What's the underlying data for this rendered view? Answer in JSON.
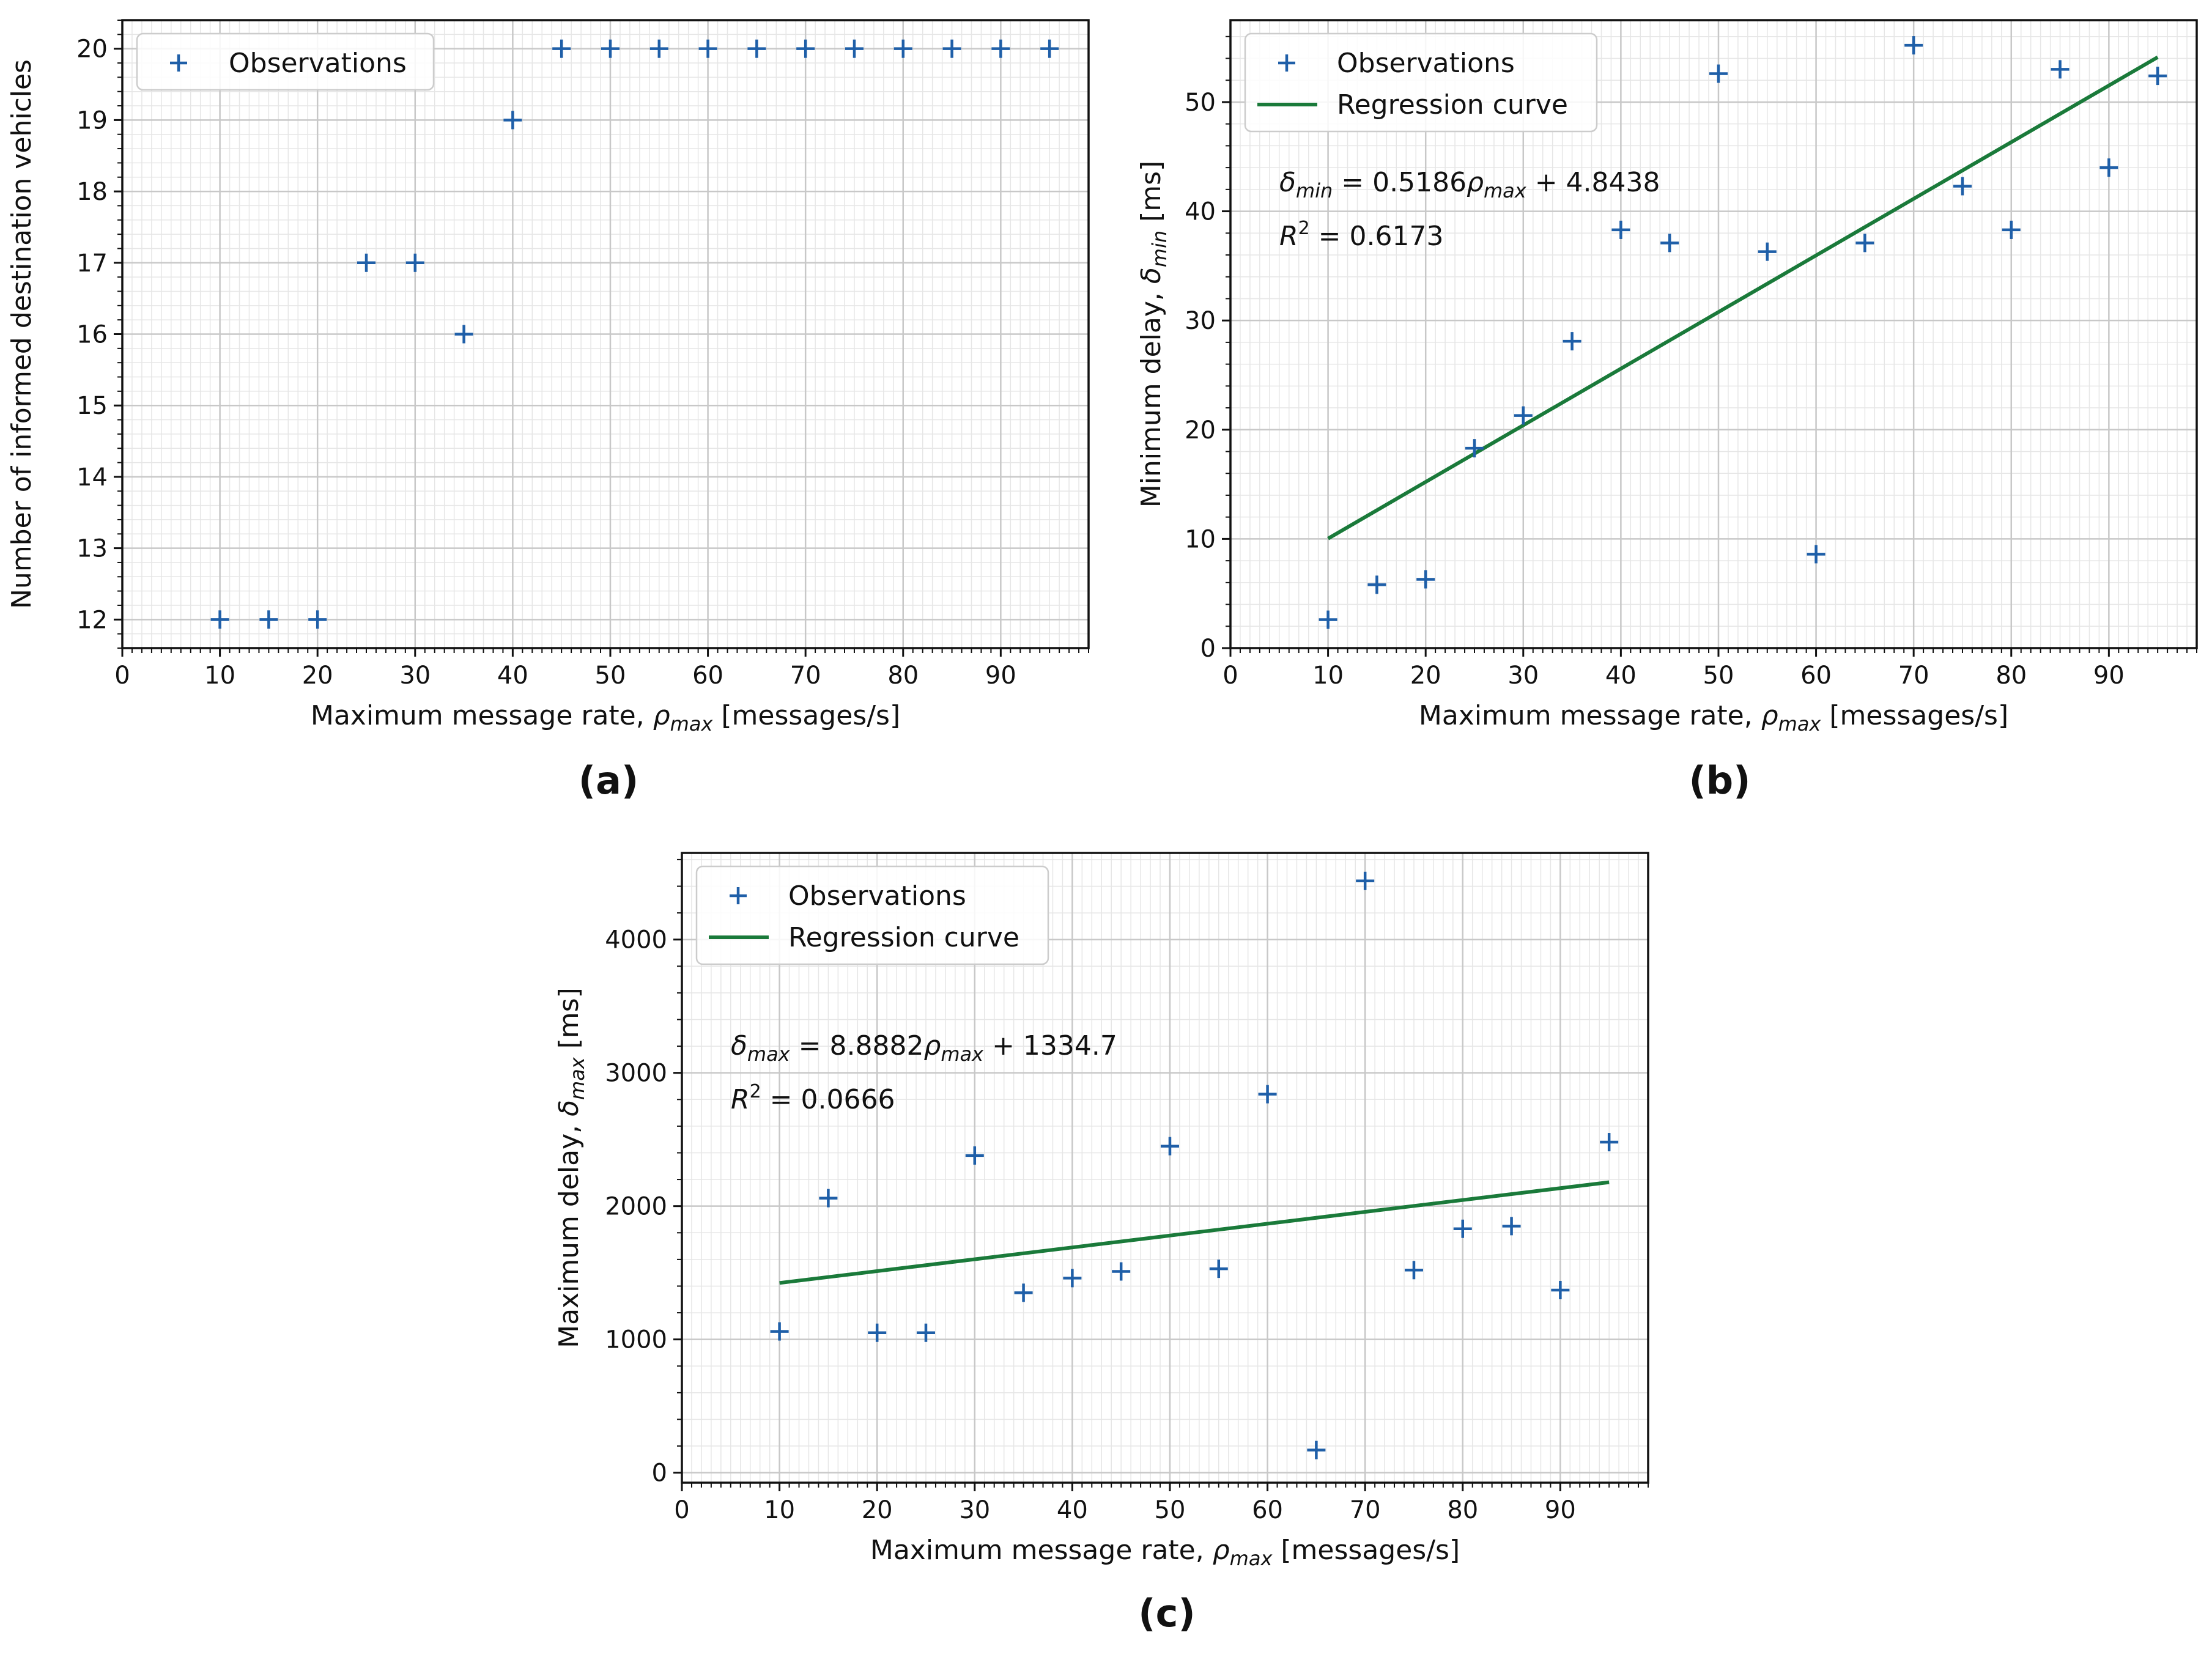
{
  "colors": {
    "observation": "#1f5fa8",
    "regression": "#1a7a3a"
  },
  "chart_data": [
    {
      "id": "a",
      "panel_label": "(a)",
      "type": "scatter",
      "title": "",
      "xlabel_prefix": "Maximum message rate, ",
      "xlabel_symbol": "ρ",
      "xlabel_subscript": "max",
      "xlabel_suffix": " [messages/s]",
      "ylabel_prefix": "Number of informed destination vehicles",
      "ylabel_symbol": "",
      "ylabel_subscript": "",
      "ylabel_suffix": "",
      "xlim": [
        0,
        99
      ],
      "ylim": [
        11.6,
        20.4
      ],
      "xticks": [
        0,
        10,
        20,
        30,
        40,
        50,
        60,
        70,
        80,
        90
      ],
      "xtick_labels": [
        "0",
        "10",
        "20",
        "30",
        "40",
        "50",
        "60",
        "70",
        "80",
        "90"
      ],
      "yticks": [
        12,
        13,
        14,
        15,
        16,
        17,
        18,
        19,
        20
      ],
      "ytick_labels": [
        "12",
        "13",
        "14",
        "15",
        "16",
        "17",
        "18",
        "19",
        "20"
      ],
      "grid": true,
      "legend": [
        "Observations"
      ],
      "legend_position": "top-left",
      "series": [
        {
          "name": "Observations",
          "kind": "points",
          "x": [
            10,
            15,
            20,
            25,
            30,
            35,
            40,
            45,
            50,
            55,
            60,
            65,
            70,
            75,
            80,
            85,
            90,
            95
          ],
          "y": [
            12,
            12,
            12,
            17,
            17,
            16,
            19,
            20,
            20,
            20,
            20,
            20,
            20,
            20,
            20,
            20,
            20,
            20
          ]
        }
      ]
    },
    {
      "id": "b",
      "panel_label": "(b)",
      "type": "scatter",
      "title": "",
      "xlabel_prefix": "Maximum message rate, ",
      "xlabel_symbol": "ρ",
      "xlabel_subscript": "max",
      "xlabel_suffix": " [messages/s]",
      "ylabel_prefix": "Minimum delay, ",
      "ylabel_symbol": "δ",
      "ylabel_subscript": "min",
      "ylabel_suffix": " [ms]",
      "xlim": [
        0,
        99
      ],
      "ylim": [
        0,
        57.5
      ],
      "xticks": [
        0,
        10,
        20,
        30,
        40,
        50,
        60,
        70,
        80,
        90
      ],
      "xtick_labels": [
        "0",
        "10",
        "20",
        "30",
        "40",
        "50",
        "60",
        "70",
        "80",
        "90"
      ],
      "yticks": [
        0,
        10,
        20,
        30,
        40,
        50
      ],
      "ytick_labels": [
        "0",
        "10",
        "20",
        "30",
        "40",
        "50"
      ],
      "grid": true,
      "legend": [
        "Observations",
        "Regression curve"
      ],
      "legend_position": "top-left",
      "equation": {
        "lhs_symbol": "δ",
        "lhs_sub": "min",
        "rhs_a": " = 0.5186",
        "rhs_symbol": "ρ",
        "rhs_sub": "max",
        "rhs_b": " + 4.8438",
        "r2_label": "R",
        "r2_sup": "2",
        "r2_value": " = 0.6173"
      },
      "series": [
        {
          "name": "Observations",
          "kind": "points",
          "x": [
            10,
            15,
            20,
            25,
            30,
            35,
            40,
            45,
            50,
            55,
            60,
            65,
            70,
            75,
            80,
            85,
            90,
            95
          ],
          "y": [
            2.6,
            5.8,
            6.3,
            18.3,
            21.3,
            28.1,
            38.3,
            37.1,
            52.6,
            36.3,
            8.6,
            37.1,
            55.2,
            42.3,
            38.3,
            53.0,
            44.0,
            52.4
          ]
        },
        {
          "name": "Regression curve",
          "kind": "line",
          "x": [
            10,
            95
          ],
          "y": [
            10.03,
            54.11
          ]
        }
      ]
    },
    {
      "id": "c",
      "panel_label": "(c)",
      "type": "scatter",
      "title": "",
      "xlabel_prefix": "Maximum message rate, ",
      "xlabel_symbol": "ρ",
      "xlabel_subscript": "max",
      "xlabel_suffix": " [messages/s]",
      "ylabel_prefix": "Maximum delay, ",
      "ylabel_symbol": "δ",
      "ylabel_subscript": "max",
      "ylabel_suffix": " [ms]",
      "xlim": [
        0,
        99
      ],
      "ylim": [
        -75,
        4650
      ],
      "xticks": [
        0,
        10,
        20,
        30,
        40,
        50,
        60,
        70,
        80,
        90
      ],
      "xtick_labels": [
        "0",
        "10",
        "20",
        "30",
        "40",
        "50",
        "60",
        "70",
        "80",
        "90"
      ],
      "yticks": [
        0,
        1000,
        2000,
        3000,
        4000
      ],
      "ytick_labels": [
        "0",
        "1000",
        "2000",
        "3000",
        "4000"
      ],
      "grid": true,
      "legend": [
        "Observations",
        "Regression curve"
      ],
      "legend_position": "top-left",
      "equation": {
        "lhs_symbol": "δ",
        "lhs_sub": "max",
        "rhs_a": " = 8.8882",
        "rhs_symbol": "ρ",
        "rhs_sub": "max",
        "rhs_b": " + 1334.7",
        "r2_label": "R",
        "r2_sup": "2",
        "r2_value": " = 0.0666"
      },
      "series": [
        {
          "name": "Observations",
          "kind": "points",
          "x": [
            10,
            15,
            20,
            25,
            30,
            35,
            40,
            45,
            50,
            55,
            60,
            65,
            70,
            75,
            80,
            85,
            90,
            95
          ],
          "y": [
            1060,
            2060,
            1050,
            1050,
            2380,
            1350,
            1460,
            1510,
            2450,
            1530,
            2840,
            170,
            4440,
            1520,
            1830,
            1850,
            1370,
            2480
          ]
        },
        {
          "name": "Regression curve",
          "kind": "line",
          "x": [
            10,
            95
          ],
          "y": [
            1423.6,
            2179.1
          ]
        }
      ]
    }
  ]
}
